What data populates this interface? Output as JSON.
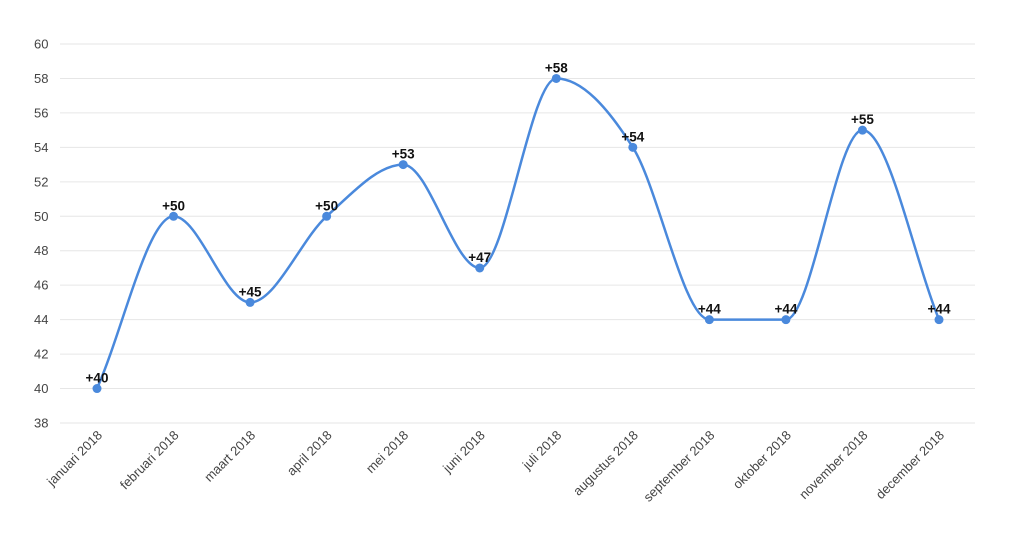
{
  "chart_data": {
    "type": "line",
    "smooth": true,
    "categories": [
      "januari 2018",
      "februari 2018",
      "maart 2018",
      "april 2018",
      "mei 2018",
      "juni 2018",
      "juli 2018",
      "augustus 2018",
      "september 2018",
      "oktober 2018",
      "november 2018",
      "december 2018"
    ],
    "series": [
      {
        "values": [
          40,
          50,
          45,
          50,
          53,
          47,
          58,
          54,
          44,
          44,
          55,
          44
        ],
        "labels": [
          "+40",
          "+50",
          "+45",
          "+50",
          "+53",
          "+47",
          "+58",
          "+54",
          "+44",
          "+44",
          "+55",
          "+44"
        ],
        "color": "#4a89dc"
      }
    ],
    "y_ticks": [
      "38",
      "40",
      "42",
      "44",
      "46",
      "48",
      "50",
      "52",
      "54",
      "56",
      "58",
      "60"
    ],
    "ylim": [
      38,
      60
    ],
    "grid": true,
    "legend": "none",
    "title": "",
    "xlabel": "",
    "ylabel": ""
  }
}
